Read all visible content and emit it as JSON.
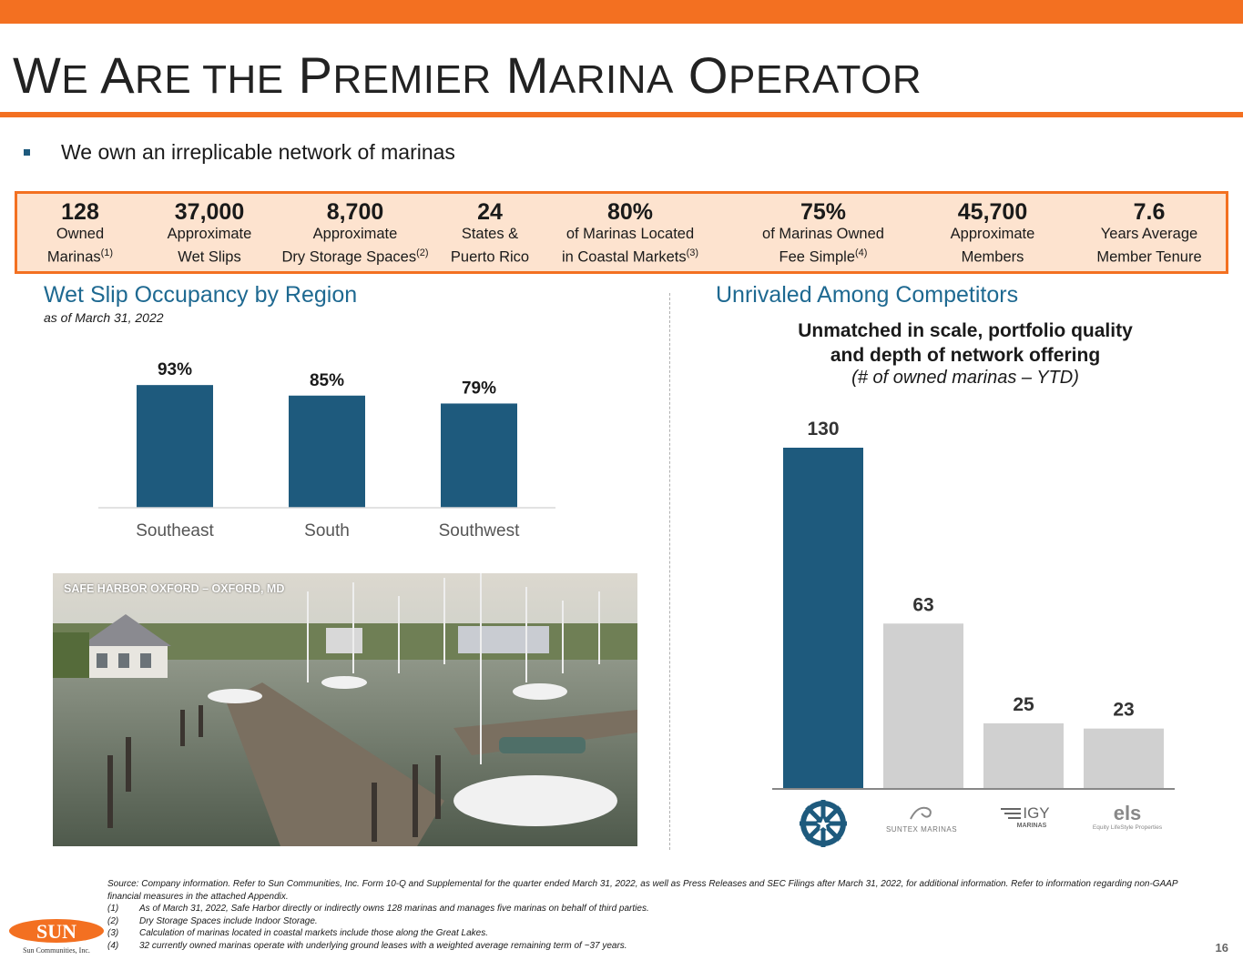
{
  "title": {
    "w_cap": "W",
    "w_rest": "E",
    "are_cap": "A",
    "are_rest": "RE THE",
    "premier_cap": "P",
    "premier_rest": "REMIER",
    "marina_cap": "M",
    "marina_rest": "ARINA",
    "operator_cap": "O",
    "operator_rest": "PERATOR"
  },
  "bullet": "We own an irreplicable network of marinas",
  "stats": [
    {
      "value": "128",
      "line1": "Owned",
      "line2": "Marinas",
      "note": "(1)"
    },
    {
      "value": "37,000",
      "line1": "Approximate",
      "line2": "Wet Slips",
      "note": ""
    },
    {
      "value": "8,700",
      "line1": "Approximate",
      "line2": "Dry Storage Spaces",
      "note": "(2)"
    },
    {
      "value": "24",
      "line1": "States &",
      "line2": "Puerto Rico",
      "note": ""
    },
    {
      "value": "80%",
      "line1": "of Marinas Located",
      "line2": "in Coastal Markets",
      "note": "(3)"
    },
    {
      "value": "75%",
      "line1": "of Marinas Owned",
      "line2": "Fee Simple",
      "note": "(4)"
    },
    {
      "value": "45,700",
      "line1": "Approximate",
      "line2": "Members",
      "note": ""
    },
    {
      "value": "7.6",
      "line1": "Years Average",
      "line2": "Member Tenure",
      "note": ""
    }
  ],
  "occupancy": {
    "title": "Wet Slip Occupancy by Region",
    "subtitle": "as of March 31, 2022"
  },
  "competitors": {
    "title": "Unrivaled Among Competitors",
    "heading_line1": "Unmatched in scale, portfolio quality",
    "heading_line2": "and depth of network offering",
    "subheading": "(# of owned marinas – YTD)",
    "logos": {
      "suntex": "SUNTEX MARINAS",
      "igy": "IGY",
      "igy_sub": "MARINAS",
      "els": "els",
      "els_sub": "Equity LifeStyle Properties"
    }
  },
  "photo": {
    "caption": "SAFE HARBOR OXFORD – OXFORD, MD"
  },
  "chart_data": [
    {
      "type": "bar",
      "categories": [
        "Southeast",
        "South",
        "Southwest"
      ],
      "values": [
        93,
        85,
        79
      ],
      "data_labels": [
        "93%",
        "85%",
        "79%"
      ],
      "color": "#1e5a7d",
      "grid": false
    },
    {
      "type": "bar",
      "categories": [
        "Safe Harbor",
        "Suntex Marinas",
        "IGY Marinas",
        "Equity LifeStyle Properties"
      ],
      "values": [
        130,
        63,
        25,
        23
      ],
      "data_labels": [
        "130",
        "63",
        "25",
        "23"
      ],
      "colors": [
        "#1e5a7d",
        "#d0d0d0",
        "#d0d0d0",
        "#d0d0d0"
      ],
      "grid": false
    }
  ],
  "footnotes": {
    "source": "Source: Company information. Refer to Sun Communities, Inc. Form 10-Q and Supplemental for the quarter ended March 31, 2022, as well as Press Releases and SEC Filings after March 31, 2022, for additional information. Refer to information regarding non-GAAP financial measures in the attached Appendix.",
    "items": [
      {
        "n": "(1)",
        "text": "As of March 31, 2022, Safe Harbor directly or indirectly owns 128 marinas and manages five marinas on behalf of third parties."
      },
      {
        "n": "(2)",
        "text": "Dry Storage Spaces include Indoor Storage."
      },
      {
        "n": "(3)",
        "text": "Calculation of marinas located in coastal markets include those along the Great Lakes."
      },
      {
        "n": "(4)",
        "text": "32 currently owned marinas operate with underlying ground leases with a weighted average remaining term of ~37 years."
      }
    ]
  },
  "company_logo": {
    "word": "SUN",
    "name": "Sun Communities, Inc."
  },
  "page_number": "16",
  "colors": {
    "accent": "#f37021",
    "navy": "#1e5a7d",
    "section_title": "#1e6991",
    "stats_bg": "#fde3cf",
    "gray_bar": "#d0d0d0"
  }
}
